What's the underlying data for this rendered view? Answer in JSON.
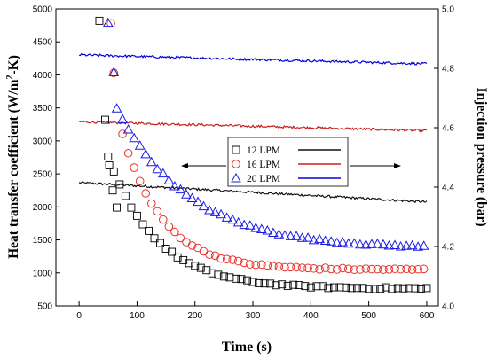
{
  "chart_data": {
    "type": "scatter",
    "xlabel": "Time (s)",
    "ylabel_left": "Heat transfer coefficient (W/m",
    "ylabel_left_sup": "2",
    "ylabel_left_end": "-K)",
    "ylabel_right": "Injection pressure (bar)",
    "xlim": [
      -40,
      620
    ],
    "ylim_left": [
      500,
      5000
    ],
    "ylim_right": [
      4.0,
      5.0
    ],
    "x_ticks": [
      0,
      100,
      200,
      300,
      400,
      500,
      600
    ],
    "x_tick_labels": [
      "0",
      "100",
      "200",
      "300",
      "400",
      "500",
      "600"
    ],
    "y_left_ticks": [
      500,
      1000,
      1500,
      2000,
      2500,
      3000,
      3500,
      4000,
      4500,
      5000
    ],
    "y_left_tick_labels": [
      "500",
      "1000",
      "1500",
      "2000",
      "2500",
      "3000",
      "3500",
      "4000",
      "4500",
      "5000"
    ],
    "y_right_ticks": [
      4.0,
      4.2,
      4.4,
      4.6,
      4.8,
      5.0
    ],
    "y_right_tick_labels": [
      "4.0",
      "4.2",
      "4.4",
      "4.6",
      "4.8",
      "5.0"
    ],
    "legend_position": "center-right",
    "grid": false,
    "series": [
      {
        "name": "12 LPM",
        "marker": "square",
        "color": "#000000",
        "hc_x0": 50,
        "hc_start": 2750,
        "hc_end": 760,
        "hc_tau": 85,
        "hc_extra": [
          [
            35,
            4820
          ],
          [
            45,
            3320
          ],
          [
            52,
            2630
          ],
          [
            58,
            2250
          ],
          [
            65,
            1990
          ]
        ],
        "p_start": 4.415,
        "p_end": 4.35
      },
      {
        "name": "16 LPM",
        "marker": "circle",
        "color": "#e8332b",
        "hc_x0": 75,
        "hc_start": 3100,
        "hc_end": 1050,
        "hc_tau": 70,
        "hc_extra": [
          [
            55,
            4780
          ],
          [
            60,
            4030
          ]
        ],
        "p_start": 4.62,
        "p_end": 4.59
      },
      {
        "name": "20 LPM",
        "marker": "triangle",
        "color": "#1a1ae6",
        "hc_x0": 65,
        "hc_start": 3500,
        "hc_end": 1370,
        "hc_tau": 125,
        "hc_extra": [
          [
            50,
            4790
          ],
          [
            60,
            4040
          ]
        ],
        "p_start": 4.845,
        "p_end": 4.815
      }
    ]
  }
}
